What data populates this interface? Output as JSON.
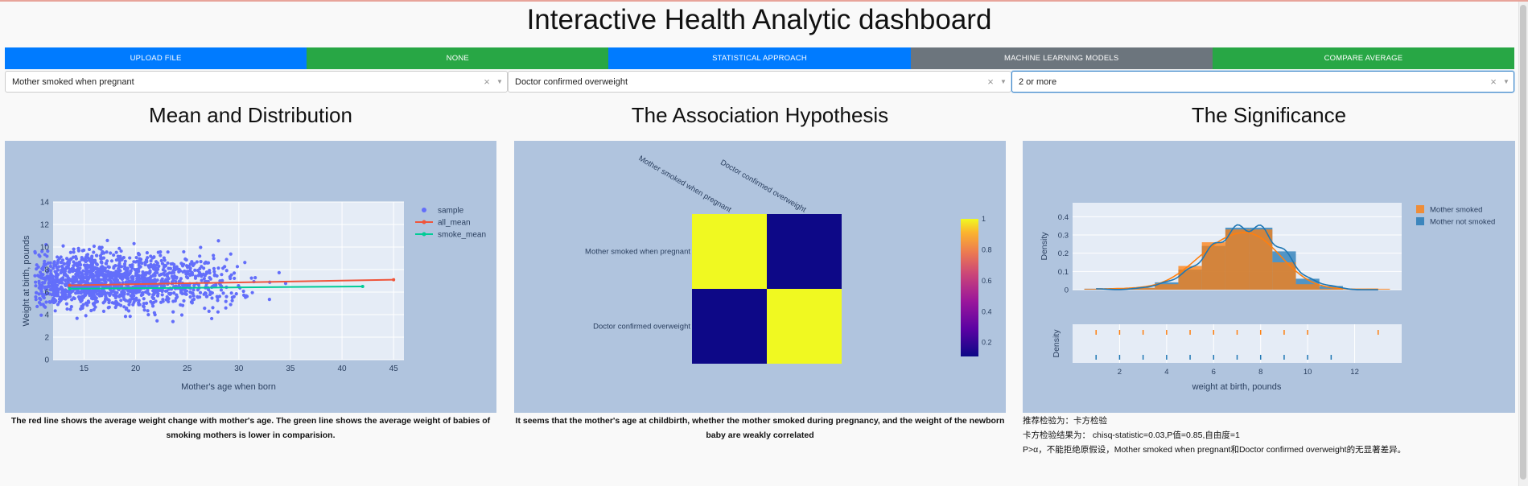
{
  "header": {
    "title": "Interactive Health Analytic dashboard"
  },
  "buttons": [
    {
      "label": "UPLOAD FILE",
      "color": "#007bff"
    },
    {
      "label": "NONE",
      "color": "#28a745"
    },
    {
      "label": "STATISTICAL APPROACH",
      "color": "#007bff"
    },
    {
      "label": "MACHINE LEARNING MODELS",
      "color": "#6c757d"
    },
    {
      "label": "COMPARE AVERAGE",
      "color": "#28a745"
    }
  ],
  "dropdowns": [
    {
      "value": "Mother smoked when pregnant"
    },
    {
      "value": "Doctor confirmed overweight"
    },
    {
      "value": "2 or more"
    }
  ],
  "icons": {
    "clear": "clear-x-icon",
    "caret": "caret-down-icon"
  },
  "sections": {
    "mean": {
      "title": "Mean and Distribution",
      "caption": "The red line shows the average weight change with mother's age. The green line shows the average weight of babies of smoking mothers is lower in comparision."
    },
    "assoc": {
      "title": "The Association Hypothesis",
      "caption": "It seems that the mother's age at childbirth, whether the mother smoked during pregnancy, and the weight of the newborn baby are weakly correlated"
    },
    "signif": {
      "title": "The Significance",
      "lines": [
        "推荐检验为：卡方检验",
        "卡方检验结果为： chisq-statistic=0.03,P值=0.85,自由度=1",
        "P>α，不能拒绝原假设，Mother smoked when pregnant和Doctor confirmed overweight的无显著差异。"
      ]
    }
  },
  "chart_data": [
    {
      "type": "scatter",
      "title": "",
      "xlabel": "Mother's age when born",
      "ylabel": "Weight at birth, pounds",
      "xlim": [
        12,
        46
      ],
      "ylim": [
        0,
        14
      ],
      "x_ticks": [
        15,
        20,
        25,
        30,
        35,
        40,
        45
      ],
      "y_ticks": [
        0,
        2,
        4,
        6,
        8,
        10,
        12,
        14
      ],
      "grid": true,
      "legend_position": "top-right",
      "series": [
        {
          "name": "sample",
          "kind": "points",
          "color": "#636efa",
          "approx_count": 1500,
          "x_range": [
            13,
            46
          ],
          "center_y": 7,
          "spread_y": 1.3
        },
        {
          "name": "all_mean",
          "kind": "line",
          "color": "#ef553b",
          "x": [
            13.6,
            45
          ],
          "y": [
            6.6,
            7.1
          ]
        },
        {
          "name": "smoke_mean",
          "kind": "line",
          "color": "#00cc96",
          "x": [
            13.6,
            42
          ],
          "y": [
            6.3,
            6.5
          ]
        }
      ]
    },
    {
      "type": "heatmap",
      "rows": [
        "Mother smoked when pregnant",
        "Doctor confirmed overweight"
      ],
      "columns": [
        "Mother smoked when pregnant",
        "Doctor confirmed overweight"
      ],
      "values": [
        [
          1,
          0.03
        ],
        [
          0.03,
          1
        ]
      ],
      "colorscale": "Plasma",
      "colorbar_ticks": [
        0.2,
        0.4,
        0.6,
        0.8,
        1
      ]
    },
    {
      "type": "area",
      "title": "",
      "xlabel": "weight at birth, pounds",
      "ylabel": "Density",
      "ylim": [
        0,
        0.45
      ],
      "xlim": [
        0,
        14
      ],
      "y_ticks": [
        0,
        0.1,
        0.2,
        0.3,
        0.4
      ],
      "x_ticks": [
        2,
        4,
        6,
        8,
        10,
        12
      ],
      "legend_position": "top-right",
      "series": [
        {
          "name": "Mother smoked",
          "color": "#ff7f0e",
          "bins": [
            1,
            2,
            3,
            4,
            5,
            6,
            7,
            8,
            9,
            10,
            11,
            12,
            13
          ],
          "values": [
            0.005,
            0.005,
            0.01,
            0.03,
            0.13,
            0.26,
            0.33,
            0.33,
            0.15,
            0.03,
            0.005,
            0.0,
            0.005
          ]
        },
        {
          "name": "Mother not smoked",
          "color": "#1f77b4",
          "bins": [
            1,
            2,
            3,
            4,
            5,
            6,
            7,
            8,
            9,
            10,
            11,
            12,
            13
          ],
          "values": [
            0.005,
            0.0,
            0.01,
            0.04,
            0.11,
            0.24,
            0.34,
            0.34,
            0.21,
            0.06,
            0.02,
            0.0,
            0.0
          ]
        }
      ],
      "rug": {
        "ylabel": "Density",
        "smoked_x": [
          1,
          2,
          3,
          4,
          5,
          6,
          7,
          8,
          9,
          10,
          13
        ],
        "not_smoked_x": [
          1,
          2,
          3,
          4,
          5,
          6,
          7,
          8,
          9,
          10,
          11
        ]
      }
    }
  ]
}
